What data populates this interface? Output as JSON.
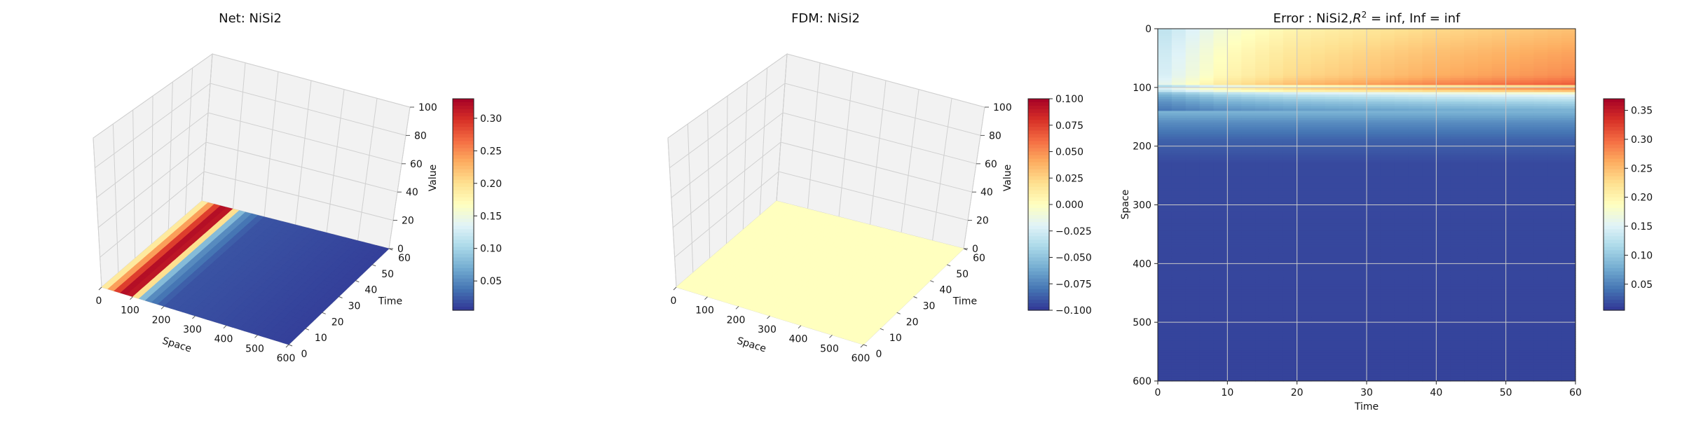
{
  "chart_data": [
    {
      "type": "surface3d",
      "title": "Net: NiSi2",
      "xlabel": "Space",
      "ylabel": "Time",
      "zlabel": "Value",
      "xlim": [
        0,
        600
      ],
      "ylim": [
        0,
        60
      ],
      "zlim": [
        0,
        100
      ],
      "x_ticks": [
        "0",
        "100",
        "200",
        "300",
        "400",
        "500",
        "600"
      ],
      "y_ticks": [
        "0",
        "10",
        "20",
        "30",
        "40",
        "50",
        "60"
      ],
      "z_ticks": [
        "0",
        "20",
        "40",
        "60",
        "80",
        "100"
      ],
      "colormap": "RdYlBu_r",
      "colorbar": {
        "min": 0.005,
        "max": 0.33,
        "ticks": [
          "0.05",
          "0.10",
          "0.15",
          "0.20",
          "0.25",
          "0.30"
        ]
      },
      "profile_along_space": [
        [
          0,
          0.17
        ],
        [
          20,
          0.21
        ],
        [
          40,
          0.27
        ],
        [
          60,
          0.31
        ],
        [
          80,
          0.33
        ],
        [
          100,
          0.3
        ],
        [
          110,
          0.2
        ],
        [
          120,
          0.13
        ],
        [
          130,
          0.08
        ],
        [
          150,
          0.05
        ],
        [
          200,
          0.02
        ],
        [
          600,
          0.01
        ]
      ]
    },
    {
      "type": "surface3d",
      "title": "FDM: NiSi2",
      "xlabel": "Space",
      "ylabel": "Time",
      "zlabel": "Value",
      "xlim": [
        0,
        600
      ],
      "ylim": [
        0,
        60
      ],
      "zlim": [
        0,
        100
      ],
      "x_ticks": [
        "0",
        "100",
        "200",
        "300",
        "400",
        "500",
        "600"
      ],
      "y_ticks": [
        "0",
        "10",
        "20",
        "30",
        "40",
        "50",
        "60"
      ],
      "z_ticks": [
        "0",
        "20",
        "40",
        "60",
        "80",
        "100"
      ],
      "colormap": "RdYlBu_r",
      "colorbar": {
        "min": -0.1,
        "max": 0.1,
        "ticks": [
          "0.100",
          "0.075",
          "0.050",
          "0.025",
          "0.000",
          "−0.025",
          "−0.050",
          "−0.075",
          "−0.100"
        ]
      },
      "surface_value": 0.0
    },
    {
      "type": "heatmap",
      "title_prefix": "Error : NiSi2,",
      "title_r": "R",
      "title_sup": "2",
      "title_suffix": " = inf, Inf = inf",
      "xlabel": "Time",
      "ylabel": "Space",
      "xlim": [
        0,
        60
      ],
      "ylim": [
        600,
        0
      ],
      "x_ticks": [
        "0",
        "10",
        "20",
        "30",
        "40",
        "50",
        "60"
      ],
      "y_ticks": [
        "0",
        "100",
        "200",
        "300",
        "400",
        "500",
        "600"
      ],
      "grid": true,
      "colormap": "RdYlBu_r",
      "colorbar": {
        "min": 0.005,
        "max": 0.37,
        "ticks": [
          "0.35",
          "0.30",
          "0.25",
          "0.20",
          "0.15",
          "0.10",
          "0.05"
        ]
      },
      "space_profile": [
        [
          0,
          0.72
        ],
        [
          40,
          0.78
        ],
        [
          80,
          0.82
        ],
        [
          95,
          0.9
        ],
        [
          100,
          0.5
        ],
        [
          103,
          0.98
        ],
        [
          108,
          0.55
        ],
        [
          115,
          0.42
        ],
        [
          125,
          0.32
        ],
        [
          140,
          0.22
        ],
        [
          160,
          0.14
        ],
        [
          190,
          0.07
        ],
        [
          230,
          0.03
        ],
        [
          600,
          0.02
        ]
      ],
      "time_profile": [
        [
          0,
          0.45
        ],
        [
          10,
          0.65
        ],
        [
          20,
          0.75
        ],
        [
          40,
          0.85
        ],
        [
          60,
          0.92
        ]
      ]
    }
  ],
  "colors": {
    "pane": "#f2f2f2",
    "grid": "#d0d0d0",
    "heatmap_grid": "#c8c8c8"
  }
}
